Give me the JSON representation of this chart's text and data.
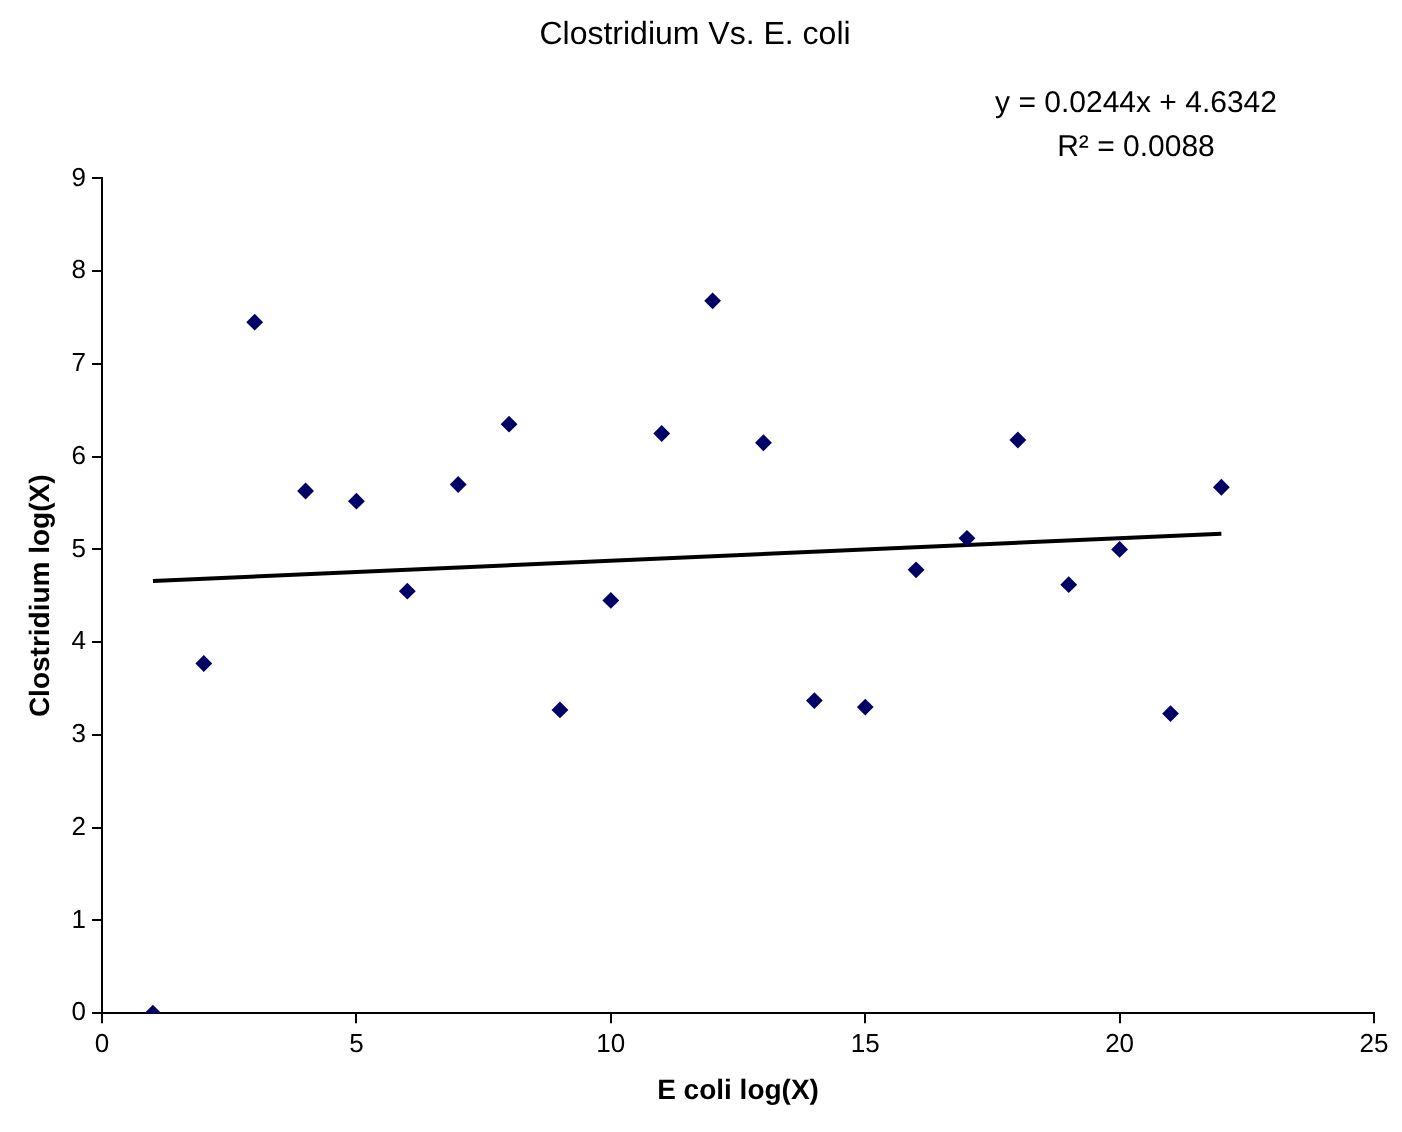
{
  "chart_data": {
    "type": "scatter",
    "title": "Clostridium Vs. E. coli",
    "xlabel": "E coli log(X)",
    "ylabel": "Clostridium log(X)",
    "annotations": [
      "y = 0.0244x + 4.6342",
      "R² = 0.0088"
    ],
    "series": [
      {
        "type": "scatter",
        "color": "#000066",
        "marker": "diamond",
        "x": [
          1,
          2,
          3,
          4,
          5,
          6,
          7,
          8,
          9,
          10,
          11,
          12,
          13,
          14,
          15,
          16,
          17,
          18,
          19,
          20,
          21,
          22
        ],
        "values": [
          0,
          3.77,
          7.45,
          5.63,
          5.52,
          4.55,
          5.7,
          6.35,
          3.27,
          4.45,
          6.25,
          7.68,
          6.15,
          3.37,
          3.3,
          4.78,
          5.12,
          6.18,
          4.62,
          5.0,
          3.23,
          5.67
        ]
      },
      {
        "type": "line",
        "color": "#000000",
        "marker": "none",
        "line_style": "solid",
        "x": [
          1,
          22
        ],
        "values": [
          4.66,
          5.17
        ]
      }
    ],
    "xlim": [
      0,
      25
    ],
    "xticks": [
      0,
      5,
      10,
      15,
      20,
      25
    ],
    "ylim": [
      0,
      9
    ],
    "yticks": [
      0,
      1,
      2,
      3,
      4,
      5,
      6,
      7,
      8,
      9
    ],
    "grid": false,
    "legend": false
  }
}
